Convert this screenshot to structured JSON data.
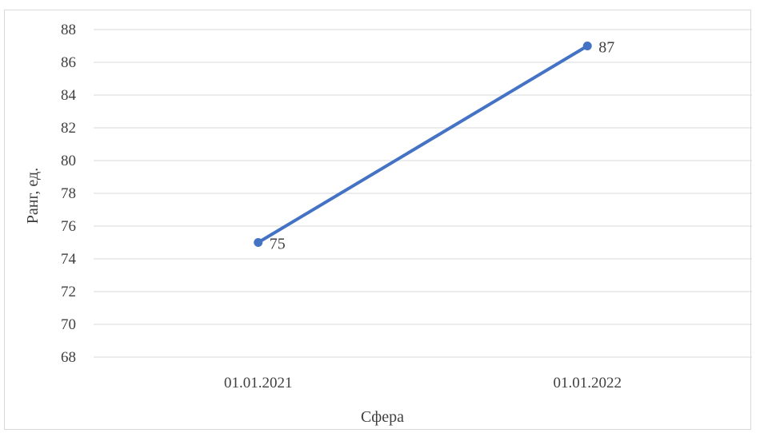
{
  "chart_data": {
    "type": "line",
    "categories": [
      "01.01.2021",
      "01.01.2022"
    ],
    "series": [
      {
        "values": [
          75,
          87
        ],
        "color": "#4472c4"
      }
    ],
    "data_labels": [
      "75",
      "87"
    ],
    "xlabel": "Сфера",
    "ylabel": "Ранг, ед.",
    "ylim": [
      68,
      88
    ],
    "yticks": [
      88,
      86,
      84,
      82,
      80,
      78,
      76,
      74,
      72,
      70,
      68
    ],
    "grid": true,
    "legend": "none"
  }
}
